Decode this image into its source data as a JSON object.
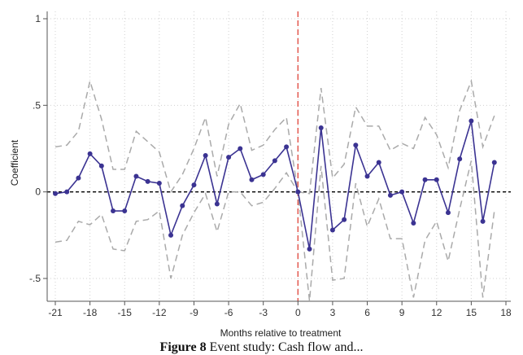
{
  "caption": {
    "prefix": "Figure 8",
    "text": "Event study: Cash flow and..."
  },
  "chart_data": {
    "type": "line",
    "title": "",
    "xlabel": "Months relative to treatment",
    "ylabel": "Coefficient",
    "xlim": [
      -21,
      18
    ],
    "ylim": [
      -0.5,
      1
    ],
    "xticks": [
      -21,
      -18,
      -15,
      -12,
      -9,
      -6,
      -3,
      0,
      3,
      6,
      9,
      12,
      15,
      18
    ],
    "yticks": [
      -0.5,
      0,
      0.5,
      1
    ],
    "ytick_labels": [
      "-.5",
      "0",
      ".5",
      "1"
    ],
    "grid": true,
    "reference_lines": {
      "horizontal_y": 0,
      "vertical_x": 0
    },
    "colors": {
      "estimate": "#3b3392",
      "ci": "#aaaaaa",
      "treatment_line": "#e0453a",
      "zero_line": "#000000",
      "grid": "#d0d0d0"
    },
    "x": [
      -21,
      -20,
      -19,
      -18,
      -17,
      -16,
      -15,
      -14,
      -13,
      -12,
      -11,
      -10,
      -9,
      -8,
      -7,
      -6,
      -5,
      -4,
      -3,
      -2,
      -1,
      0,
      1,
      2,
      3,
      4,
      5,
      6,
      7,
      8,
      9,
      10,
      11,
      12,
      13,
      14,
      15,
      16,
      17
    ],
    "series": [
      {
        "role": "estimate",
        "values": [
          -0.01,
          0.0,
          0.08,
          0.22,
          0.15,
          -0.11,
          -0.11,
          0.09,
          0.06,
          0.05,
          -0.25,
          -0.08,
          0.04,
          0.21,
          -0.07,
          0.2,
          0.25,
          0.07,
          0.1,
          0.18,
          0.26,
          0.0,
          -0.33,
          0.37,
          -0.22,
          -0.16,
          0.27,
          0.09,
          0.17,
          -0.02,
          0.0,
          -0.18,
          0.07,
          0.07,
          -0.12,
          0.19,
          0.41,
          -0.17,
          0.17
        ]
      },
      {
        "role": "ci_upper",
        "values": [
          0.26,
          0.27,
          0.35,
          0.64,
          0.42,
          0.13,
          0.13,
          0.35,
          0.29,
          0.23,
          0.0,
          0.1,
          0.25,
          0.43,
          0.09,
          0.39,
          0.51,
          0.24,
          0.27,
          0.36,
          0.43,
          0.0,
          -0.01,
          0.6,
          0.08,
          0.16,
          0.49,
          0.38,
          0.38,
          0.24,
          0.28,
          0.25,
          0.43,
          0.33,
          0.14,
          0.47,
          0.64,
          0.26,
          0.44
        ]
      },
      {
        "role": "ci_lower",
        "values": [
          -0.29,
          -0.28,
          -0.17,
          -0.19,
          -0.13,
          -0.33,
          -0.34,
          -0.17,
          -0.16,
          -0.11,
          -0.5,
          -0.25,
          -0.12,
          -0.01,
          -0.23,
          0.0,
          0.0,
          -0.08,
          -0.06,
          0.02,
          0.11,
          0.0,
          -0.63,
          0.15,
          -0.51,
          -0.5,
          0.05,
          -0.2,
          -0.04,
          -0.27,
          -0.27,
          -0.61,
          -0.28,
          -0.17,
          -0.4,
          -0.1,
          0.18,
          -0.61,
          -0.11
        ]
      }
    ]
  }
}
